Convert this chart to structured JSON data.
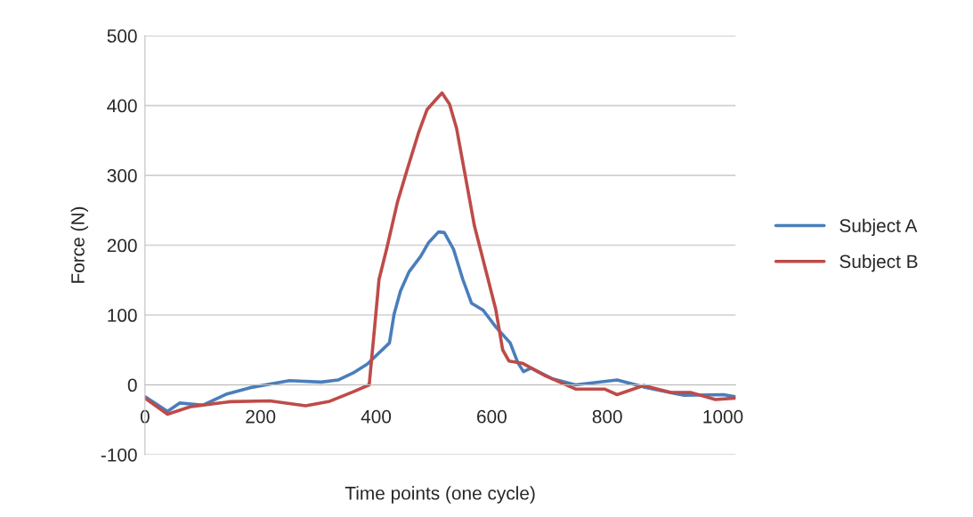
{
  "chart_data": {
    "type": "line",
    "xlabel": "Time points (one cycle)",
    "ylabel": "Force (N)",
    "xlim": [
      0,
      1022
    ],
    "xticks": [
      0,
      200,
      400,
      600,
      800,
      1000
    ],
    "ylim": [
      -100,
      500
    ],
    "yticks": [
      -100,
      0,
      100,
      200,
      300,
      400,
      500
    ],
    "grid": "y",
    "legend": "right",
    "marker": "none",
    "line_style": "solid",
    "series": [
      {
        "name": "Subject A",
        "color": "#4a7ebb",
        "x": [
          0,
          39,
          60,
          100,
          142,
          182,
          250,
          305,
          334,
          360,
          385,
          423,
          431,
          442,
          457,
          477,
          491,
          508,
          518,
          534,
          550,
          565,
          585,
          607,
          632,
          645,
          655,
          668,
          704,
          745,
          817,
          863,
          933,
          1001,
          1021
        ],
        "values": [
          -17,
          -38,
          -26,
          -29,
          -13,
          -4,
          6,
          4,
          7,
          17,
          30,
          60,
          101,
          134,
          162,
          184,
          204,
          219,
          218,
          194,
          151,
          117,
          107,
          83,
          60,
          32,
          19,
          24,
          9,
          0,
          7,
          -3,
          -15,
          -14,
          -17
        ]
      },
      {
        "name": "Subject B",
        "color": "#be4b48",
        "x": [
          0,
          39,
          80,
          148,
          216,
          278,
          318,
          360,
          388,
          398,
          405,
          418,
          437,
          454,
          473,
          488,
          503,
          514,
          527,
          539,
          555,
          570,
          591,
          607,
          619,
          630,
          653,
          693,
          745,
          795,
          817,
          863,
          911,
          945,
          987,
          1021
        ],
        "values": [
          -19,
          -42,
          -31,
          -24,
          -23,
          -30,
          -24,
          -10,
          0,
          88,
          151,
          194,
          262,
          309,
          360,
          394,
          408,
          418,
          402,
          368,
          296,
          228,
          160,
          108,
          50,
          34,
          31,
          13,
          -6,
          -6,
          -14,
          -1,
          -11,
          -11,
          -21,
          -19
        ]
      }
    ]
  }
}
